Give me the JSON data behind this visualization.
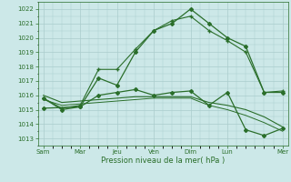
{
  "background_color": "#cce8e8",
  "grid_color": "#aacccc",
  "line_color": "#2a6e2a",
  "x_tick_labels": [
    "Sam",
    "Mar",
    "Jeu",
    "Ven",
    "Dim",
    "Lun",
    "Mer"
  ],
  "x_tick_positions": [
    0,
    2,
    4,
    6,
    8,
    10,
    13
  ],
  "xlabel": "Pression niveau de la mer( hPa )",
  "ylim": [
    1012.5,
    1022.5
  ],
  "yticks": [
    1013,
    1014,
    1015,
    1016,
    1017,
    1018,
    1019,
    1020,
    1021,
    1022
  ],
  "series": [
    {
      "x": [
        0,
        1,
        2,
        3,
        4,
        5,
        6,
        7,
        8,
        9,
        10,
        11,
        12,
        13
      ],
      "y": [
        1015.8,
        1015.0,
        1015.2,
        1017.2,
        1016.7,
        1019.0,
        1020.5,
        1021.0,
        1022.0,
        1021.0,
        1020.0,
        1019.4,
        1016.2,
        1016.2
      ],
      "marker": "D",
      "ms": 2.0,
      "lw": 0.9
    },
    {
      "x": [
        0,
        1,
        2,
        3,
        4,
        5,
        6,
        7,
        8,
        9,
        10,
        11,
        12,
        13
      ],
      "y": [
        1015.8,
        1015.1,
        1015.3,
        1017.8,
        1017.8,
        1019.2,
        1020.5,
        1021.2,
        1021.5,
        1020.5,
        1019.8,
        1019.0,
        1016.2,
        1016.3
      ],
      "marker": "+",
      "ms": 3.5,
      "lw": 0.8
    },
    {
      "x": [
        0,
        1,
        2,
        3,
        4,
        5,
        6,
        7,
        8,
        9,
        10,
        11,
        12,
        13
      ],
      "y": [
        1016.0,
        1015.5,
        1015.6,
        1015.7,
        1015.8,
        1015.9,
        1015.9,
        1015.9,
        1015.9,
        1015.5,
        1015.3,
        1015.0,
        1014.5,
        1013.8
      ],
      "marker": null,
      "ms": 0,
      "lw": 0.8
    },
    {
      "x": [
        0,
        1,
        2,
        3,
        4,
        5,
        6,
        7,
        8,
        9,
        10,
        11,
        12,
        13
      ],
      "y": [
        1015.7,
        1015.3,
        1015.4,
        1015.5,
        1015.6,
        1015.7,
        1015.8,
        1015.8,
        1015.8,
        1015.3,
        1015.0,
        1014.6,
        1014.1,
        1013.5
      ],
      "marker": null,
      "ms": 0,
      "lw": 0.7
    },
    {
      "x": [
        0,
        2,
        3,
        4,
        5,
        6,
        7,
        8,
        9,
        10,
        11,
        12,
        13
      ],
      "y": [
        1015.1,
        1015.2,
        1016.0,
        1016.2,
        1016.4,
        1016.0,
        1016.2,
        1016.3,
        1015.3,
        1016.2,
        1013.6,
        1013.2,
        1013.7
      ],
      "marker": "D",
      "ms": 2.0,
      "lw": 0.9
    }
  ]
}
